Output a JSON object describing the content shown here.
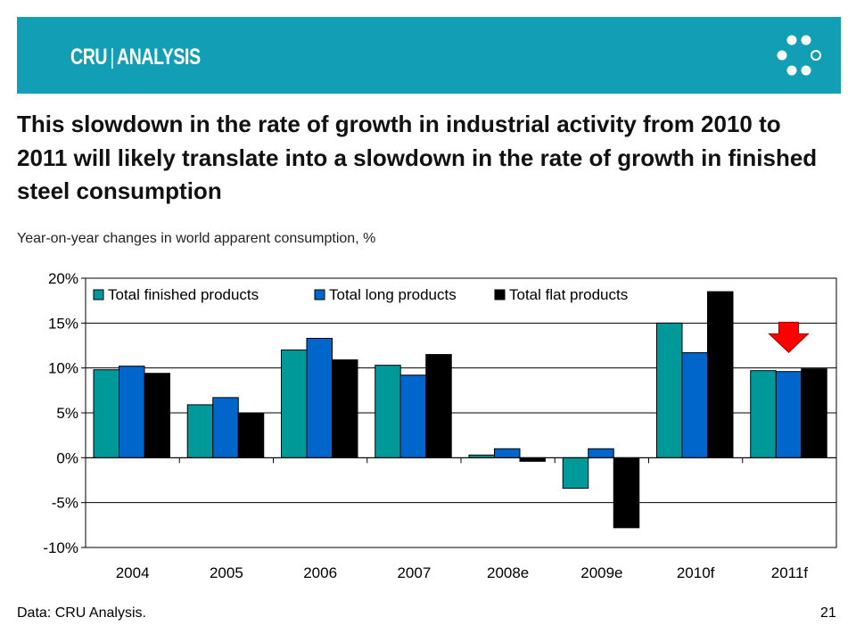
{
  "header": {
    "brand_primary": "CRU",
    "brand_separator": "|",
    "brand_secondary": "ANALYSIS",
    "logo_icon": "ring-of-dots-icon",
    "banner_color": "#129fb5"
  },
  "slide": {
    "headline": "This slowdown in the rate of growth in industrial activity from 2010 to 2011 will likely translate into a slowdown in the rate of growth in finished steel consumption",
    "subtitle": "Year-on-year changes in world apparent consumption, %",
    "source": "Data: CRU Analysis.",
    "page_number": "21"
  },
  "chart_data": {
    "type": "bar",
    "title": "",
    "xlabel": "",
    "ylabel": "",
    "categories": [
      "2004",
      "2005",
      "2006",
      "2007",
      "2008e",
      "2009e",
      "2010f",
      "2011f"
    ],
    "series": [
      {
        "name": "Total finished products",
        "color": "#009999",
        "values": [
          9.8,
          5.9,
          12.0,
          10.3,
          0.3,
          -3.4,
          15.0,
          9.7
        ]
      },
      {
        "name": "Total long products",
        "color": "#0066cc",
        "values": [
          10.2,
          6.7,
          13.3,
          9.2,
          1.0,
          1.0,
          11.7,
          9.6
        ]
      },
      {
        "name": "Total flat products",
        "color": "#000000",
        "values": [
          9.4,
          5.0,
          10.9,
          11.5,
          -0.4,
          -7.8,
          18.5,
          9.9
        ]
      }
    ],
    "ylim": [
      -10,
      20
    ],
    "yticks": [
      -10,
      -5,
      0,
      5,
      10,
      15,
      20
    ],
    "ytick_labels": [
      "-10%",
      "-5%",
      "0%",
      "5%",
      "10%",
      "15%",
      "20%"
    ],
    "grid": true,
    "legend_position": "top-left",
    "annotation": {
      "type": "down-arrow",
      "category": "2011f",
      "color": "#ff0000"
    }
  }
}
